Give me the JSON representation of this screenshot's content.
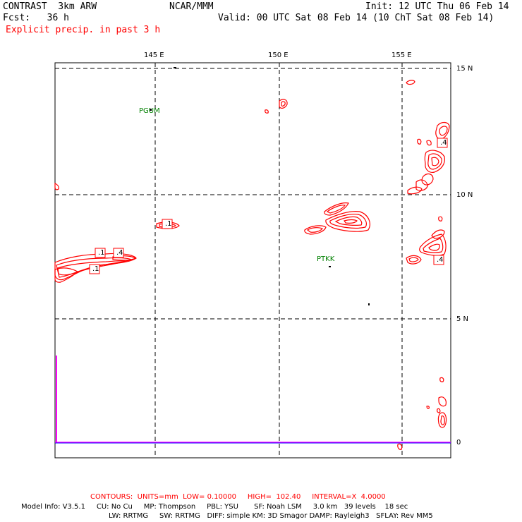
{
  "header": {
    "model": "CONTRAST  3km ARW",
    "org": "NCAR/MMM",
    "init": "Init: 12 UTC Thu 06 Feb 14",
    "fcst": "Fcst:   36 h",
    "valid": "Valid: 00 UTC Sat 08 Feb 14 (10 ChT Sat 08 Feb 14)",
    "field": "Explicit precip. in past 3 h"
  },
  "map": {
    "lon_labels": [
      "145 E",
      "150 E",
      "155 E"
    ],
    "lat_labels": [
      "15 N",
      "10 N",
      "5 N",
      "0"
    ],
    "stations": [
      "PGUM",
      "PTKK"
    ],
    "contour_labels": [
      ".1",
      ".1",
      ".4",
      ".1",
      ".1",
      ".4",
      ".4"
    ],
    "colors": {
      "contour": "#ff0000",
      "grid": "#000000",
      "station": "#008000",
      "terrain": "#ff00ff"
    }
  },
  "footer": {
    "contours": "CONTOURS:  UNITS=mm  LOW= 0.10000     HIGH=  102.40     INTERVAL=X  4.0000",
    "info1": "Model Info: V3.5.1     CU: No Cu     MP: Thompson     PBL: YSU       SF: Noah LSM     3.0 km   39 levels    18 sec",
    "info2": "LW: RRTMG     SW: RRTMG   DIFF: simple KM: 3D Smagor DAMP: Rayleigh3   SFLAY: Rev MM5"
  }
}
